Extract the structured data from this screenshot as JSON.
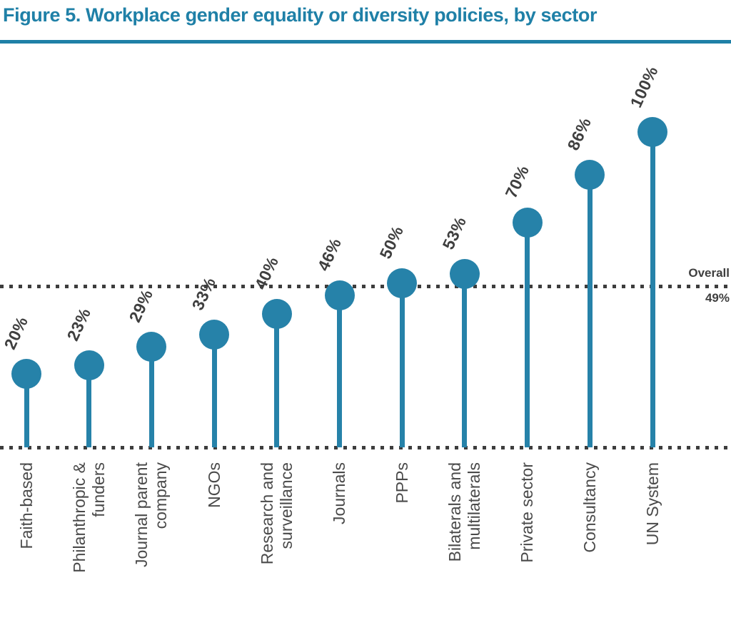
{
  "figure": {
    "title": "Figure 5. Workplace gender equality or diversity policies, by sector"
  },
  "colors": {
    "accent_teal": "#1f80a7",
    "point_teal": "#2682a9",
    "value_label_gray": "#3f3f3f",
    "axis_label_gray": "#4a4a4a",
    "dotted_line_gray": "#3d3d3d",
    "background": "#ffffff"
  },
  "chart_data": {
    "type": "lollipop",
    "title": "Figure 5. Workplace gender equality or diversity policies, by sector",
    "unit": "%",
    "ylim": [
      0,
      100
    ],
    "legend": "none",
    "grid": "dotted horizontal baseline and dotted overall-average reference line",
    "categories": [
      "Faith-based",
      "Philanthropic & funders",
      "Journal parent company",
      "NGOs",
      "Research and surveillance",
      "Journals",
      "PPPs",
      "Bilaterals and multilaterals",
      "Private sector",
      "Consultancy",
      "UN System"
    ],
    "category_lines": [
      [
        "Faith-based"
      ],
      [
        "Philanthropic &",
        "funders"
      ],
      [
        "Journal parent",
        "company"
      ],
      [
        "NGOs"
      ],
      [
        "Research and",
        "surveillance"
      ],
      [
        "Journals"
      ],
      [
        "PPPs"
      ],
      [
        "Bilaterals and",
        "multilaterals"
      ],
      [
        "Private sector"
      ],
      [
        "Consultancy"
      ],
      [
        "UN System"
      ]
    ],
    "values": [
      20,
      23,
      29,
      33,
      40,
      46,
      50,
      53,
      70,
      86,
      100
    ],
    "value_labels": [
      "20%",
      "23%",
      "29%",
      "33%",
      "40%",
      "46%",
      "50%",
      "53%",
      "70%",
      "86%",
      "100%"
    ],
    "overall": {
      "label": "Overall",
      "value": 49,
      "value_label": "49%"
    }
  }
}
